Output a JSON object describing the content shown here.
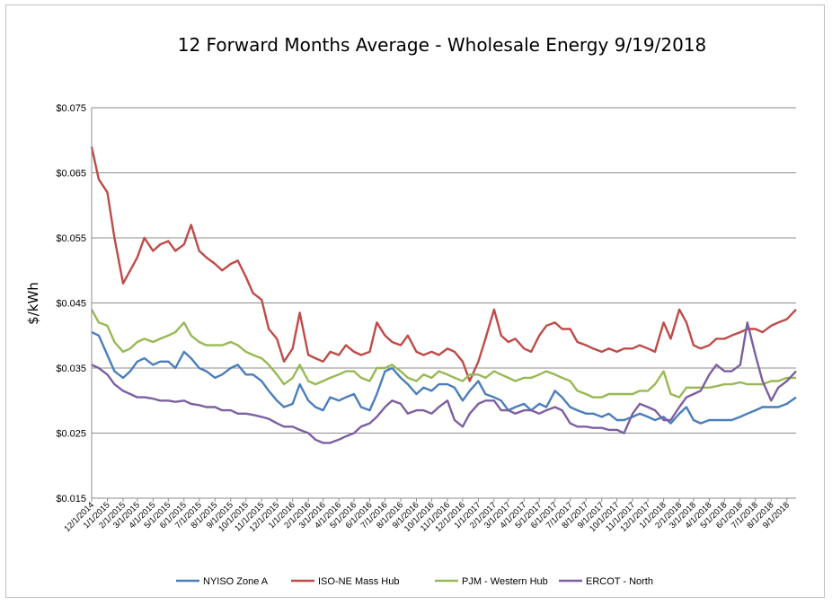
{
  "chart_data": {
    "type": "line",
    "title": "12 Forward Months Average - Wholesale Energy 9/19/2018",
    "ylabel": "$/kWh",
    "xlabel": "",
    "ylim": [
      0.015,
      0.075
    ],
    "yticks": [
      "$0.075",
      "$0.065",
      "$0.055",
      "$0.045",
      "$0.035",
      "$0.025",
      "$0.015"
    ],
    "grid": true,
    "legend_position": "bottom",
    "xticks": [
      "12/1/2014",
      "1/1/2015",
      "2/1/2015",
      "3/1/2015",
      "4/1/2015",
      "5/1/2015",
      "6/1/2015",
      "7/1/2015",
      "8/1/2015",
      "9/1/2015",
      "10/1/2015",
      "11/1/2015",
      "12/1/2015",
      "1/1/2016",
      "2/1/2016",
      "3/1/2016",
      "4/1/2016",
      "5/1/2016",
      "6/1/2016",
      "7/1/2016",
      "8/1/2016",
      "9/1/2016",
      "10/1/2016",
      "11/1/2016",
      "12/1/2016",
      "1/1/2017",
      "2/1/2017",
      "3/1/2017",
      "4/1/2017",
      "5/1/2017",
      "6/1/2017",
      "7/1/2017",
      "8/1/2017",
      "9/1/2017",
      "10/1/2017",
      "11/1/2017",
      "12/1/2017",
      "1/1/2018",
      "2/1/2018",
      "3/1/2018",
      "4/1/2018",
      "5/1/2018",
      "6/1/2018",
      "7/1/2018",
      "8/1/2018",
      "9/1/2018"
    ],
    "x": [
      "2014-12-01",
      "2014-12-15",
      "2015-01-01",
      "2015-01-15",
      "2015-02-01",
      "2015-02-15",
      "2015-03-01",
      "2015-03-15",
      "2015-04-01",
      "2015-04-15",
      "2015-05-01",
      "2015-05-15",
      "2015-06-01",
      "2015-06-15",
      "2015-07-01",
      "2015-07-15",
      "2015-08-01",
      "2015-08-15",
      "2015-09-01",
      "2015-09-15",
      "2015-10-01",
      "2015-10-15",
      "2015-11-01",
      "2015-11-15",
      "2015-12-01",
      "2015-12-15",
      "2016-01-01",
      "2016-01-15",
      "2016-02-01",
      "2016-02-15",
      "2016-03-01",
      "2016-03-15",
      "2016-04-01",
      "2016-04-15",
      "2016-05-01",
      "2016-05-15",
      "2016-06-01",
      "2016-06-15",
      "2016-07-01",
      "2016-07-15",
      "2016-08-01",
      "2016-08-15",
      "2016-09-01",
      "2016-09-15",
      "2016-10-01",
      "2016-10-15",
      "2016-11-01",
      "2016-11-15",
      "2016-12-01",
      "2016-12-15",
      "2017-01-01",
      "2017-01-15",
      "2017-02-01",
      "2017-02-15",
      "2017-03-01",
      "2017-03-15",
      "2017-04-01",
      "2017-04-15",
      "2017-05-01",
      "2017-05-15",
      "2017-06-01",
      "2017-06-15",
      "2017-07-01",
      "2017-07-15",
      "2017-08-01",
      "2017-08-15",
      "2017-09-01",
      "2017-09-15",
      "2017-10-01",
      "2017-10-15",
      "2017-11-01",
      "2017-11-15",
      "2017-12-01",
      "2017-12-15",
      "2018-01-01",
      "2018-01-15",
      "2018-02-01",
      "2018-02-15",
      "2018-03-01",
      "2018-03-15",
      "2018-04-01",
      "2018-04-15",
      "2018-05-01",
      "2018-05-15",
      "2018-06-01",
      "2018-06-15",
      "2018-07-01",
      "2018-07-15",
      "2018-08-01",
      "2018-08-15",
      "2018-09-01",
      "2018-09-19"
    ],
    "series": [
      {
        "name": "NYISO Zone A",
        "color": "#4a7ebb",
        "values": [
          0.0405,
          0.04,
          0.037,
          0.0345,
          0.0335,
          0.0345,
          0.036,
          0.0365,
          0.0355,
          0.036,
          0.036,
          0.035,
          0.0375,
          0.0365,
          0.035,
          0.0345,
          0.0335,
          0.034,
          0.035,
          0.0355,
          0.034,
          0.034,
          0.033,
          0.0315,
          0.03,
          0.029,
          0.0295,
          0.0325,
          0.03,
          0.029,
          0.0285,
          0.0305,
          0.03,
          0.0305,
          0.031,
          0.029,
          0.0285,
          0.031,
          0.0345,
          0.035,
          0.0335,
          0.0325,
          0.031,
          0.032,
          0.0315,
          0.0325,
          0.0325,
          0.032,
          0.03,
          0.0315,
          0.033,
          0.031,
          0.0305,
          0.03,
          0.0285,
          0.029,
          0.0295,
          0.0285,
          0.0295,
          0.029,
          0.0315,
          0.0305,
          0.029,
          0.0285,
          0.028,
          0.028,
          0.0275,
          0.028,
          0.027,
          0.027,
          0.0275,
          0.028,
          0.0275,
          0.027,
          0.0275,
          0.0265,
          0.028,
          0.029,
          0.027,
          0.0265,
          0.027,
          0.027,
          0.027,
          0.027,
          0.0275,
          0.028,
          0.0285,
          0.029,
          0.029,
          0.029,
          0.0295,
          0.0305
        ]
      },
      {
        "name": "ISO-NE Mass Hub",
        "color": "#be4b48",
        "values": [
          0.069,
          0.064,
          0.062,
          0.055,
          0.048,
          0.05,
          0.052,
          0.055,
          0.053,
          0.054,
          0.0545,
          0.053,
          0.054,
          0.057,
          0.053,
          0.052,
          0.051,
          0.05,
          0.051,
          0.0515,
          0.049,
          0.0465,
          0.0455,
          0.041,
          0.0395,
          0.036,
          0.038,
          0.0435,
          0.037,
          0.0365,
          0.036,
          0.0375,
          0.037,
          0.0385,
          0.0375,
          0.037,
          0.0375,
          0.042,
          0.04,
          0.039,
          0.0385,
          0.04,
          0.0375,
          0.037,
          0.0375,
          0.037,
          0.038,
          0.0375,
          0.036,
          0.033,
          0.036,
          0.0395,
          0.044,
          0.04,
          0.039,
          0.0395,
          0.038,
          0.0375,
          0.04,
          0.0415,
          0.042,
          0.041,
          0.041,
          0.039,
          0.0385,
          0.038,
          0.0375,
          0.038,
          0.0375,
          0.038,
          0.038,
          0.0385,
          0.038,
          0.0375,
          0.042,
          0.0395,
          0.044,
          0.042,
          0.0385,
          0.038,
          0.0385,
          0.0395,
          0.0395,
          0.04,
          0.0405,
          0.041,
          0.041,
          0.0405,
          0.0415,
          0.042,
          0.0425,
          0.044
        ]
      },
      {
        "name": "PJM - Western Hub",
        "color": "#98b954",
        "values": [
          0.044,
          0.042,
          0.0415,
          0.039,
          0.0375,
          0.038,
          0.039,
          0.0395,
          0.039,
          0.0395,
          0.04,
          0.0405,
          0.042,
          0.04,
          0.039,
          0.0385,
          0.0385,
          0.0385,
          0.039,
          0.0385,
          0.0375,
          0.037,
          0.0365,
          0.0355,
          0.034,
          0.0325,
          0.0335,
          0.0355,
          0.033,
          0.0325,
          0.033,
          0.0335,
          0.034,
          0.0345,
          0.0345,
          0.0335,
          0.033,
          0.035,
          0.035,
          0.0355,
          0.0345,
          0.0335,
          0.033,
          0.034,
          0.0335,
          0.0345,
          0.034,
          0.0335,
          0.033,
          0.034,
          0.034,
          0.0335,
          0.0345,
          0.034,
          0.0335,
          0.033,
          0.0335,
          0.0335,
          0.034,
          0.0345,
          0.034,
          0.0335,
          0.033,
          0.0315,
          0.031,
          0.0305,
          0.0305,
          0.031,
          0.031,
          0.031,
          0.031,
          0.0315,
          0.0315,
          0.0325,
          0.0345,
          0.031,
          0.0305,
          0.032,
          0.032,
          0.032,
          0.032,
          0.0322,
          0.0325,
          0.0325,
          0.0328,
          0.0325,
          0.0325,
          0.0325,
          0.033,
          0.033,
          0.0335,
          0.0335
        ]
      },
      {
        "name": "ERCOT - North",
        "color": "#7d5fa0",
        "values": [
          0.0355,
          0.035,
          0.034,
          0.0325,
          0.0315,
          0.031,
          0.0305,
          0.0305,
          0.0303,
          0.03,
          0.03,
          0.0298,
          0.03,
          0.0295,
          0.0293,
          0.029,
          0.029,
          0.0285,
          0.0285,
          0.028,
          0.028,
          0.0278,
          0.0275,
          0.0272,
          0.0265,
          0.026,
          0.026,
          0.0255,
          0.025,
          0.024,
          0.0235,
          0.0235,
          0.024,
          0.0245,
          0.025,
          0.026,
          0.0265,
          0.0275,
          0.029,
          0.03,
          0.0295,
          0.028,
          0.0285,
          0.0285,
          0.028,
          0.029,
          0.03,
          0.027,
          0.026,
          0.028,
          0.0295,
          0.03,
          0.03,
          0.0285,
          0.0285,
          0.028,
          0.0285,
          0.0285,
          0.028,
          0.0285,
          0.029,
          0.0285,
          0.0265,
          0.026,
          0.026,
          0.0258,
          0.0258,
          0.0255,
          0.0255,
          0.025,
          0.028,
          0.0295,
          0.029,
          0.0285,
          0.027,
          0.027,
          0.029,
          0.0305,
          0.031,
          0.0315,
          0.034,
          0.0355,
          0.0345,
          0.0345,
          0.0355,
          0.042,
          0.037,
          0.033,
          0.03,
          0.032,
          0.033,
          0.0345
        ]
      }
    ]
  }
}
